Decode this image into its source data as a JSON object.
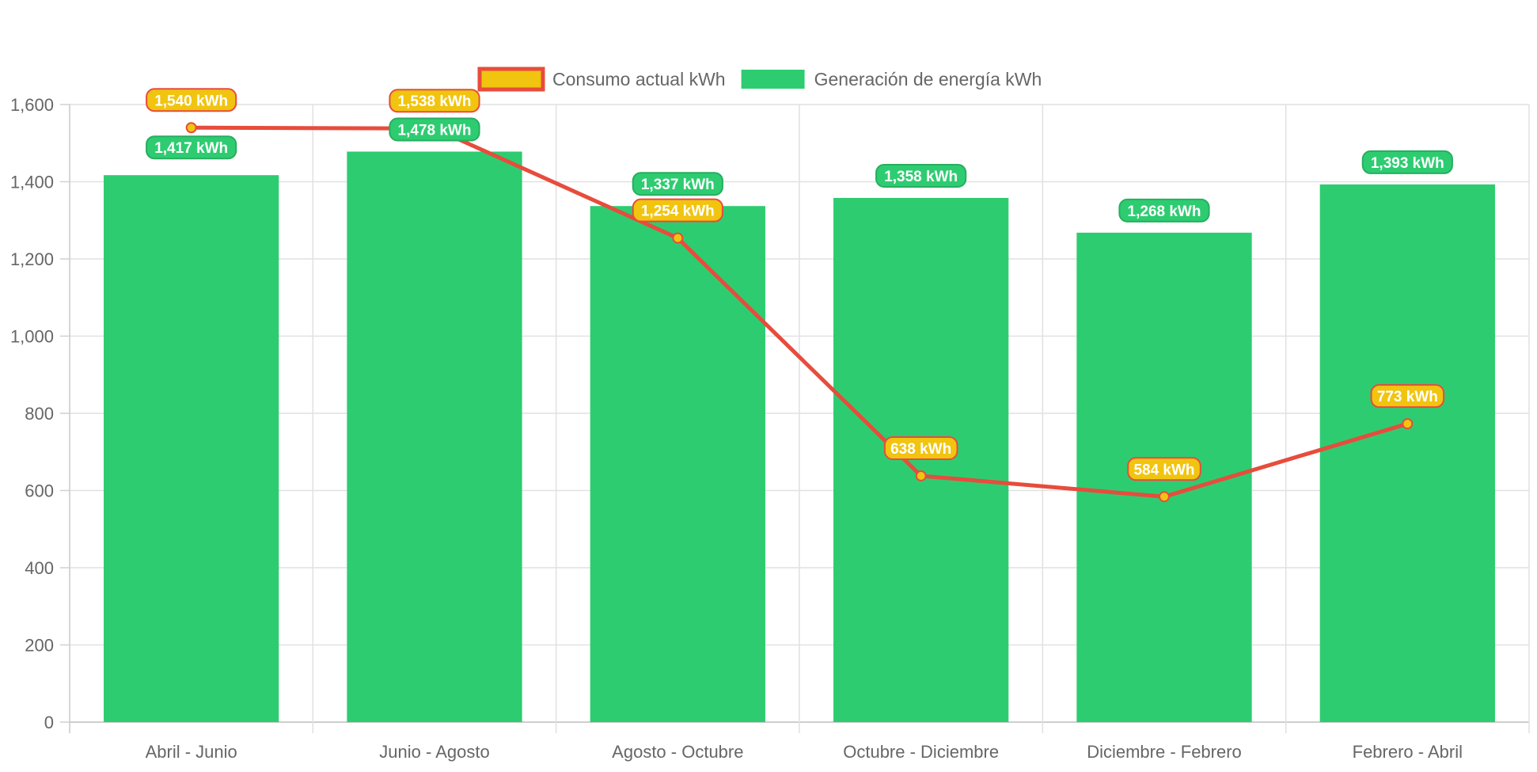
{
  "chart_data": {
    "type": "bar",
    "title": "",
    "xlabel": "",
    "ylabel": "",
    "ylim": [
      0,
      1600
    ],
    "yticks": [
      0,
      200,
      400,
      600,
      800,
      1000,
      1200,
      1400,
      1600
    ],
    "ytick_labels": [
      "0",
      "200",
      "400",
      "600",
      "800",
      "1,000",
      "1,200",
      "1,400",
      "1,600"
    ],
    "grid": true,
    "legend_position": "top",
    "categories": [
      "Abril - Junio",
      "Junio - Agosto",
      "Agosto - Octubre",
      "Octubre - Diciembre",
      "Diciembre - Febrero",
      "Febrero - Abril"
    ],
    "series": [
      {
        "name": "Consumo actual kWh",
        "type": "line",
        "values": [
          1540,
          1538,
          1254,
          638,
          584,
          773
        ],
        "labels": [
          "1,540 kWh",
          "1,538 kWh",
          "1,254 kWh",
          "638 kWh",
          "584 kWh",
          "773 kWh"
        ],
        "color": "#e74c3c",
        "fill_color": "#f1c40f"
      },
      {
        "name": "Generación de energía kWh",
        "type": "bar",
        "values": [
          1417,
          1478,
          1337,
          1358,
          1268,
          1393
        ],
        "labels": [
          "1,417 kWh",
          "1,478 kWh",
          "1,337 kWh",
          "1,358 kWh",
          "1,268 kWh",
          "1,393 kWh"
        ],
        "color": "#2ecc71",
        "label_border": "#27ae60"
      }
    ]
  }
}
